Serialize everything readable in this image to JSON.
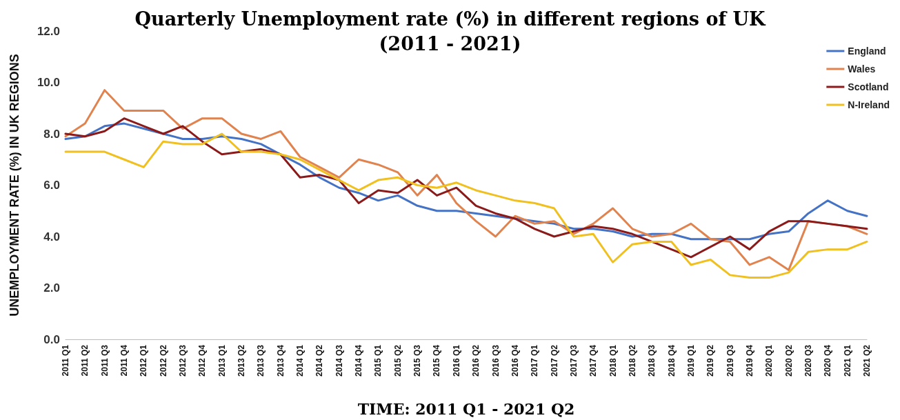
{
  "chart_data": {
    "type": "line",
    "title": "Quarterly Unemployment rate (%) in different regions of UK\n(2011 - 2021)",
    "xlabel": "TIME: 2011 Q1 - 2021 Q2",
    "ylabel": "UNEMPLOYMENT RATE (%) IN UK REGIONS",
    "categories": [
      "2011 Q1",
      "2011 Q2",
      "2011 Q3",
      "2011 Q4",
      "2012 Q1",
      "2012 Q2",
      "2012 Q3",
      "2012 Q4",
      "2013 Q1",
      "2013 Q2",
      "2013 Q3",
      "2013 Q4",
      "2014 Q1",
      "2014 Q2",
      "2014 Q3",
      "2014 Q4",
      "2015 Q1",
      "2015 Q2",
      "2015 Q3",
      "2015 Q4",
      "2016 Q1",
      "2016 Q2",
      "2016 Q3",
      "2016 Q4",
      "2017 Q1",
      "2017 Q2",
      "2017 Q3",
      "2017 Q4",
      "2018 Q1",
      "2018 Q2",
      "2018 Q3",
      "2018 Q4",
      "2019 Q1",
      "2019 Q2",
      "2019 Q3",
      "2019 Q4",
      "2020 Q1",
      "2020 Q2",
      "2020 Q3",
      "2020 Q4",
      "2021 Q1",
      "2021 Q2"
    ],
    "series": [
      {
        "name": "England",
        "color": "#4472c4",
        "values": [
          7.8,
          7.9,
          8.3,
          8.4,
          8.2,
          8.0,
          7.8,
          7.8,
          7.9,
          7.8,
          7.6,
          7.2,
          6.8,
          6.3,
          5.9,
          5.7,
          5.4,
          5.6,
          5.2,
          5.0,
          5.0,
          4.9,
          4.8,
          4.7,
          4.6,
          4.5,
          4.3,
          4.3,
          4.2,
          4.0,
          4.1,
          4.1,
          3.9,
          3.9,
          3.9,
          3.9,
          4.1,
          4.2,
          4.9,
          5.4,
          5.0,
          4.8
        ]
      },
      {
        "name": "Wales",
        "color": "#e0834f",
        "values": [
          7.9,
          8.4,
          9.7,
          8.9,
          8.9,
          8.9,
          8.2,
          8.6,
          8.6,
          8.0,
          7.8,
          8.1,
          7.1,
          6.7,
          6.3,
          7.0,
          6.8,
          6.5,
          5.6,
          6.4,
          5.3,
          4.6,
          4.0,
          4.8,
          4.5,
          4.6,
          4.1,
          4.5,
          5.1,
          4.3,
          4.0,
          4.1,
          4.5,
          3.9,
          3.8,
          2.9,
          3.2,
          2.7,
          4.6,
          4.5,
          4.4,
          4.1
        ]
      },
      {
        "name": "Scotland",
        "color": "#8b1a1a",
        "values": [
          8.0,
          7.9,
          8.1,
          8.6,
          8.3,
          8.0,
          8.3,
          7.7,
          7.2,
          7.3,
          7.4,
          7.2,
          6.3,
          6.4,
          6.2,
          5.3,
          5.8,
          5.7,
          6.2,
          5.6,
          5.9,
          5.2,
          4.9,
          4.7,
          4.3,
          4.0,
          4.2,
          4.4,
          4.3,
          4.1,
          3.8,
          3.5,
          3.2,
          3.6,
          4.0,
          3.5,
          4.2,
          4.6,
          4.6,
          4.5,
          4.4,
          4.3
        ]
      },
      {
        "name": "N-Ireland",
        "color": "#f0c020",
        "values": [
          7.3,
          7.3,
          7.3,
          7.0,
          6.7,
          7.7,
          7.6,
          7.6,
          8.0,
          7.3,
          7.3,
          7.2,
          7.0,
          6.6,
          6.2,
          5.8,
          6.2,
          6.3,
          6.0,
          5.9,
          6.1,
          5.8,
          5.6,
          5.4,
          5.3,
          5.1,
          4.0,
          4.1,
          3.0,
          3.7,
          3.8,
          3.8,
          2.9,
          3.1,
          2.5,
          2.4,
          2.4,
          2.6,
          3.4,
          3.5,
          3.5,
          3.8
        ]
      }
    ],
    "ylim": [
      0,
      12
    ],
    "yticks": [
      {
        "value": 0,
        "label": "0.0"
      },
      {
        "value": 2,
        "label": "2.0"
      },
      {
        "value": 4,
        "label": "4.0"
      },
      {
        "value": 6,
        "label": "6.0"
      },
      {
        "value": 8,
        "label": "8.0"
      },
      {
        "value": 10,
        "label": "10.0"
      },
      {
        "value": 12,
        "label": "12.0"
      }
    ],
    "grid": false,
    "legend": "top right",
    "marker": "none",
    "line_style": "solid"
  }
}
